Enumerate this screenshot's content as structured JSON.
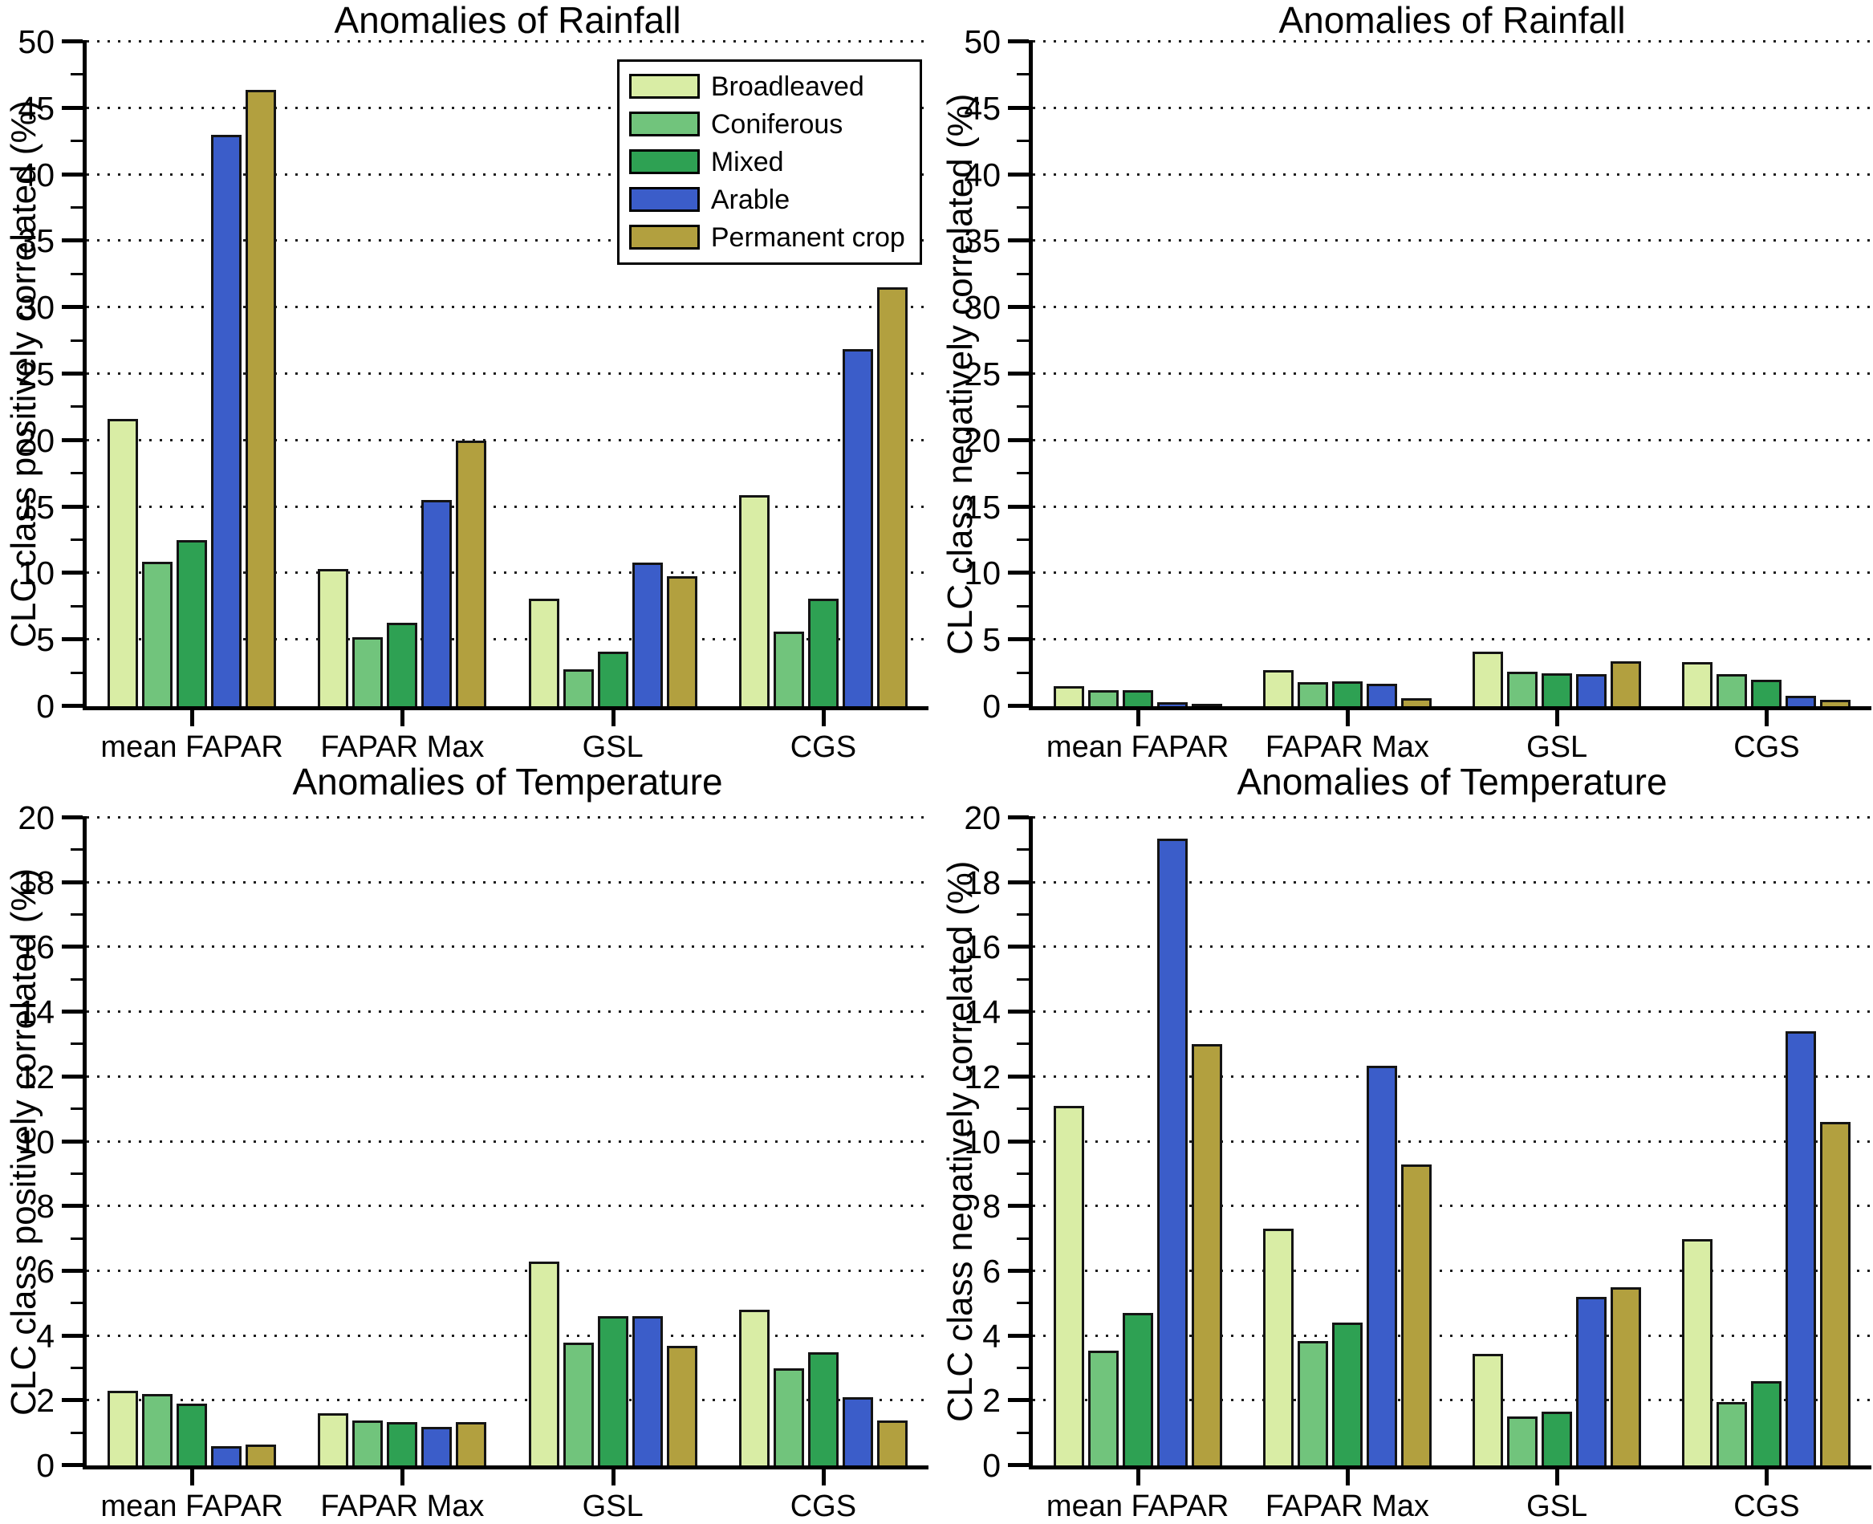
{
  "figure": {
    "background": "#ffffff",
    "series_colors": {
      "Broadleaved": "#d9eda5",
      "Coniferous": "#71c47c",
      "Mixed": "#2ea153",
      "Arable": "#3b5dc9",
      "Permanent crop": "#b2a03f"
    }
  },
  "chart_data": [
    {
      "type": "bar",
      "title": "Anomalies of Rainfall",
      "ylabel": "CLC class positively correlated (%)",
      "xlabel": "",
      "categories": [
        "mean FAPAR",
        "FAPAR Max",
        "GSL",
        "CGS"
      ],
      "ylim": [
        0,
        50
      ],
      "yticks": [
        0,
        5,
        10,
        15,
        20,
        25,
        30,
        35,
        40,
        45,
        50
      ],
      "ytick_minor_step": 2.5,
      "grid": "horizontal dotted at major ticks",
      "show_legend": true,
      "legend_position": "upper right inside plot",
      "series": [
        {
          "name": "Broadleaved",
          "color": "#d9eda5",
          "values": [
            21.6,
            10.3,
            8.1,
            15.9
          ]
        },
        {
          "name": "Coniferous",
          "color": "#71c47c",
          "values": [
            10.9,
            5.2,
            2.8,
            5.6
          ]
        },
        {
          "name": "Mixed",
          "color": "#2ea153",
          "values": [
            12.5,
            6.3,
            4.1,
            8.1
          ]
        },
        {
          "name": "Arable",
          "color": "#3b5dc9",
          "values": [
            43.0,
            15.5,
            10.8,
            26.9
          ]
        },
        {
          "name": "Permanent crop",
          "color": "#b2a03f",
          "values": [
            46.4,
            20.0,
            9.8,
            31.5
          ]
        }
      ]
    },
    {
      "type": "bar",
      "title": "Anomalies of Rainfall",
      "ylabel": "CLC class negatively correlated (%)",
      "xlabel": "",
      "categories": [
        "mean FAPAR",
        "FAPAR Max",
        "GSL",
        "CGS"
      ],
      "ylim": [
        0,
        50
      ],
      "yticks": [
        0,
        5,
        10,
        15,
        20,
        25,
        30,
        35,
        40,
        45,
        50
      ],
      "ytick_minor_step": 2.5,
      "grid": "horizontal dotted at major ticks",
      "show_legend": false,
      "series": [
        {
          "name": "Broadleaved",
          "color": "#d9eda5",
          "values": [
            1.5,
            2.7,
            4.1,
            3.3
          ]
        },
        {
          "name": "Coniferous",
          "color": "#71c47c",
          "values": [
            1.2,
            1.8,
            2.6,
            2.4
          ]
        },
        {
          "name": "Mixed",
          "color": "#2ea153",
          "values": [
            1.2,
            1.9,
            2.5,
            2.0
          ]
        },
        {
          "name": "Arable",
          "color": "#3b5dc9",
          "values": [
            0.3,
            1.7,
            2.4,
            0.8
          ]
        },
        {
          "name": "Permanent crop",
          "color": "#b2a03f",
          "values": [
            0.1,
            0.6,
            3.4,
            0.5
          ]
        }
      ]
    },
    {
      "type": "bar",
      "title": "Anomalies of Temperature",
      "ylabel": "CLC class positively correlated (%)",
      "xlabel": "",
      "categories": [
        "mean FAPAR",
        "FAPAR Max",
        "GSL",
        "CGS"
      ],
      "ylim": [
        0,
        20
      ],
      "yticks": [
        0,
        2,
        4,
        6,
        8,
        10,
        12,
        14,
        16,
        18,
        20
      ],
      "ytick_minor_step": 1,
      "grid": "horizontal dotted at major ticks",
      "show_legend": false,
      "series": [
        {
          "name": "Broadleaved",
          "color": "#d9eda5",
          "values": [
            2.3,
            1.6,
            6.3,
            4.8
          ]
        },
        {
          "name": "Coniferous",
          "color": "#71c47c",
          "values": [
            2.2,
            1.4,
            3.8,
            3.0
          ]
        },
        {
          "name": "Mixed",
          "color": "#2ea153",
          "values": [
            1.9,
            1.35,
            4.6,
            3.5
          ]
        },
        {
          "name": "Arable",
          "color": "#3b5dc9",
          "values": [
            0.6,
            1.2,
            4.6,
            2.1
          ]
        },
        {
          "name": "Permanent crop",
          "color": "#b2a03f",
          "values": [
            0.65,
            1.35,
            3.7,
            1.4
          ]
        }
      ]
    },
    {
      "type": "bar",
      "title": "Anomalies of Temperature",
      "ylabel": "CLC class negatively correlated (%)",
      "xlabel": "",
      "categories": [
        "mean FAPAR",
        "FAPAR Max",
        "GSL",
        "CGS"
      ],
      "ylim": [
        0,
        20
      ],
      "yticks": [
        0,
        2,
        4,
        6,
        8,
        10,
        12,
        14,
        16,
        18,
        20
      ],
      "ytick_minor_step": 1,
      "grid": "horizontal dotted at major ticks",
      "show_legend": false,
      "series": [
        {
          "name": "Broadleaved",
          "color": "#d9eda5",
          "values": [
            11.1,
            7.3,
            3.45,
            7.0
          ]
        },
        {
          "name": "Coniferous",
          "color": "#71c47c",
          "values": [
            3.55,
            3.85,
            1.5,
            1.95
          ]
        },
        {
          "name": "Mixed",
          "color": "#2ea153",
          "values": [
            4.7,
            4.4,
            1.65,
            2.6
          ]
        },
        {
          "name": "Arable",
          "color": "#3b5dc9",
          "values": [
            19.35,
            12.35,
            5.2,
            13.4
          ]
        },
        {
          "name": "Permanent crop",
          "color": "#b2a03f",
          "values": [
            13.0,
            9.3,
            5.5,
            10.6
          ]
        }
      ]
    }
  ]
}
